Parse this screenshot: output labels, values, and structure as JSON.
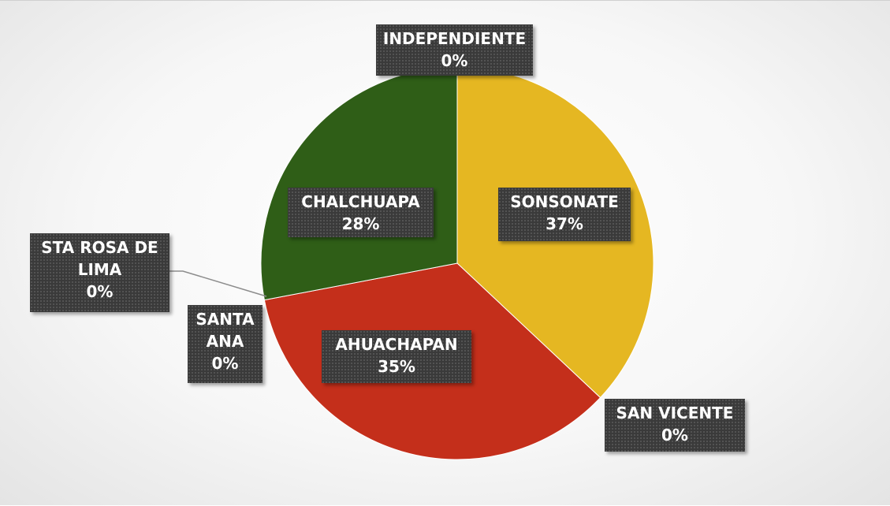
{
  "chart_data": {
    "type": "pie",
    "categories": [
      "SONSONATE",
      "SAN VICENTE",
      "AHUACHAPAN",
      "SANTA ANA",
      "STA ROSA DE LIMA",
      "CHALCHUAPA",
      "INDEPENDIENTE"
    ],
    "values": [
      37,
      0,
      35,
      0,
      0,
      28,
      0
    ],
    "value_labels": [
      "37%",
      "0%",
      "35%",
      "0%",
      "0%",
      "28%",
      "0%"
    ],
    "colors": [
      "#e5b722",
      "#7f7f7f",
      "#c42f1b",
      "#5a5a5a",
      "#8aa0c8",
      "#2f5e17",
      "#9e480e"
    ]
  }
}
